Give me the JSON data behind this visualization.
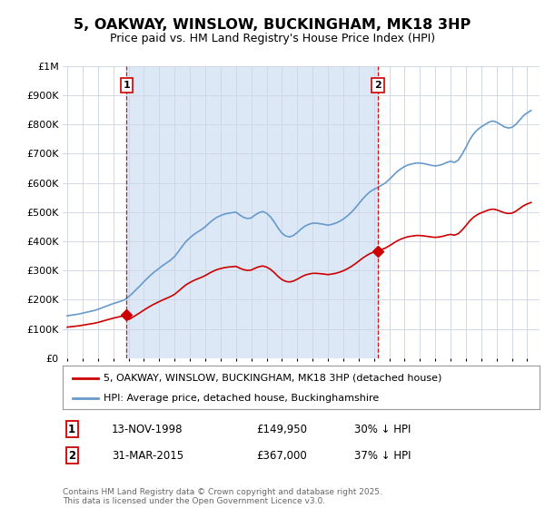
{
  "title": "5, OAKWAY, WINSLOW, BUCKINGHAM, MK18 3HP",
  "subtitle": "Price paid vs. HM Land Registry's House Price Index (HPI)",
  "legend_line1": "5, OAKWAY, WINSLOW, BUCKINGHAM, MK18 3HP (detached house)",
  "legend_line2": "HPI: Average price, detached house, Buckinghamshire",
  "annotation1_label": "1",
  "annotation1_date": "13-NOV-1998",
  "annotation1_price": "£149,950",
  "annotation1_hpi": "30% ↓ HPI",
  "annotation2_label": "2",
  "annotation2_date": "31-MAR-2015",
  "annotation2_price": "£367,000",
  "annotation2_hpi": "37% ↓ HPI",
  "footnote": "Contains HM Land Registry data © Crown copyright and database right 2025.\nThis data is licensed under the Open Government Licence v3.0.",
  "sale1_year": 1998.87,
  "sale1_price": 149950,
  "sale2_year": 2015.25,
  "sale2_price": 367000,
  "vline1_year": 1998.87,
  "vline2_year": 2015.25,
  "price_color": "#cc0000",
  "hpi_color": "#6699cc",
  "vline_color": "#cc0000",
  "grid_color": "#d0d8e8",
  "shade_color": "#dce8f5",
  "background_color": "#ffffff",
  "ylim": [
    0,
    1000000
  ],
  "xlim_start": 1994.7,
  "xlim_end": 2025.8
}
